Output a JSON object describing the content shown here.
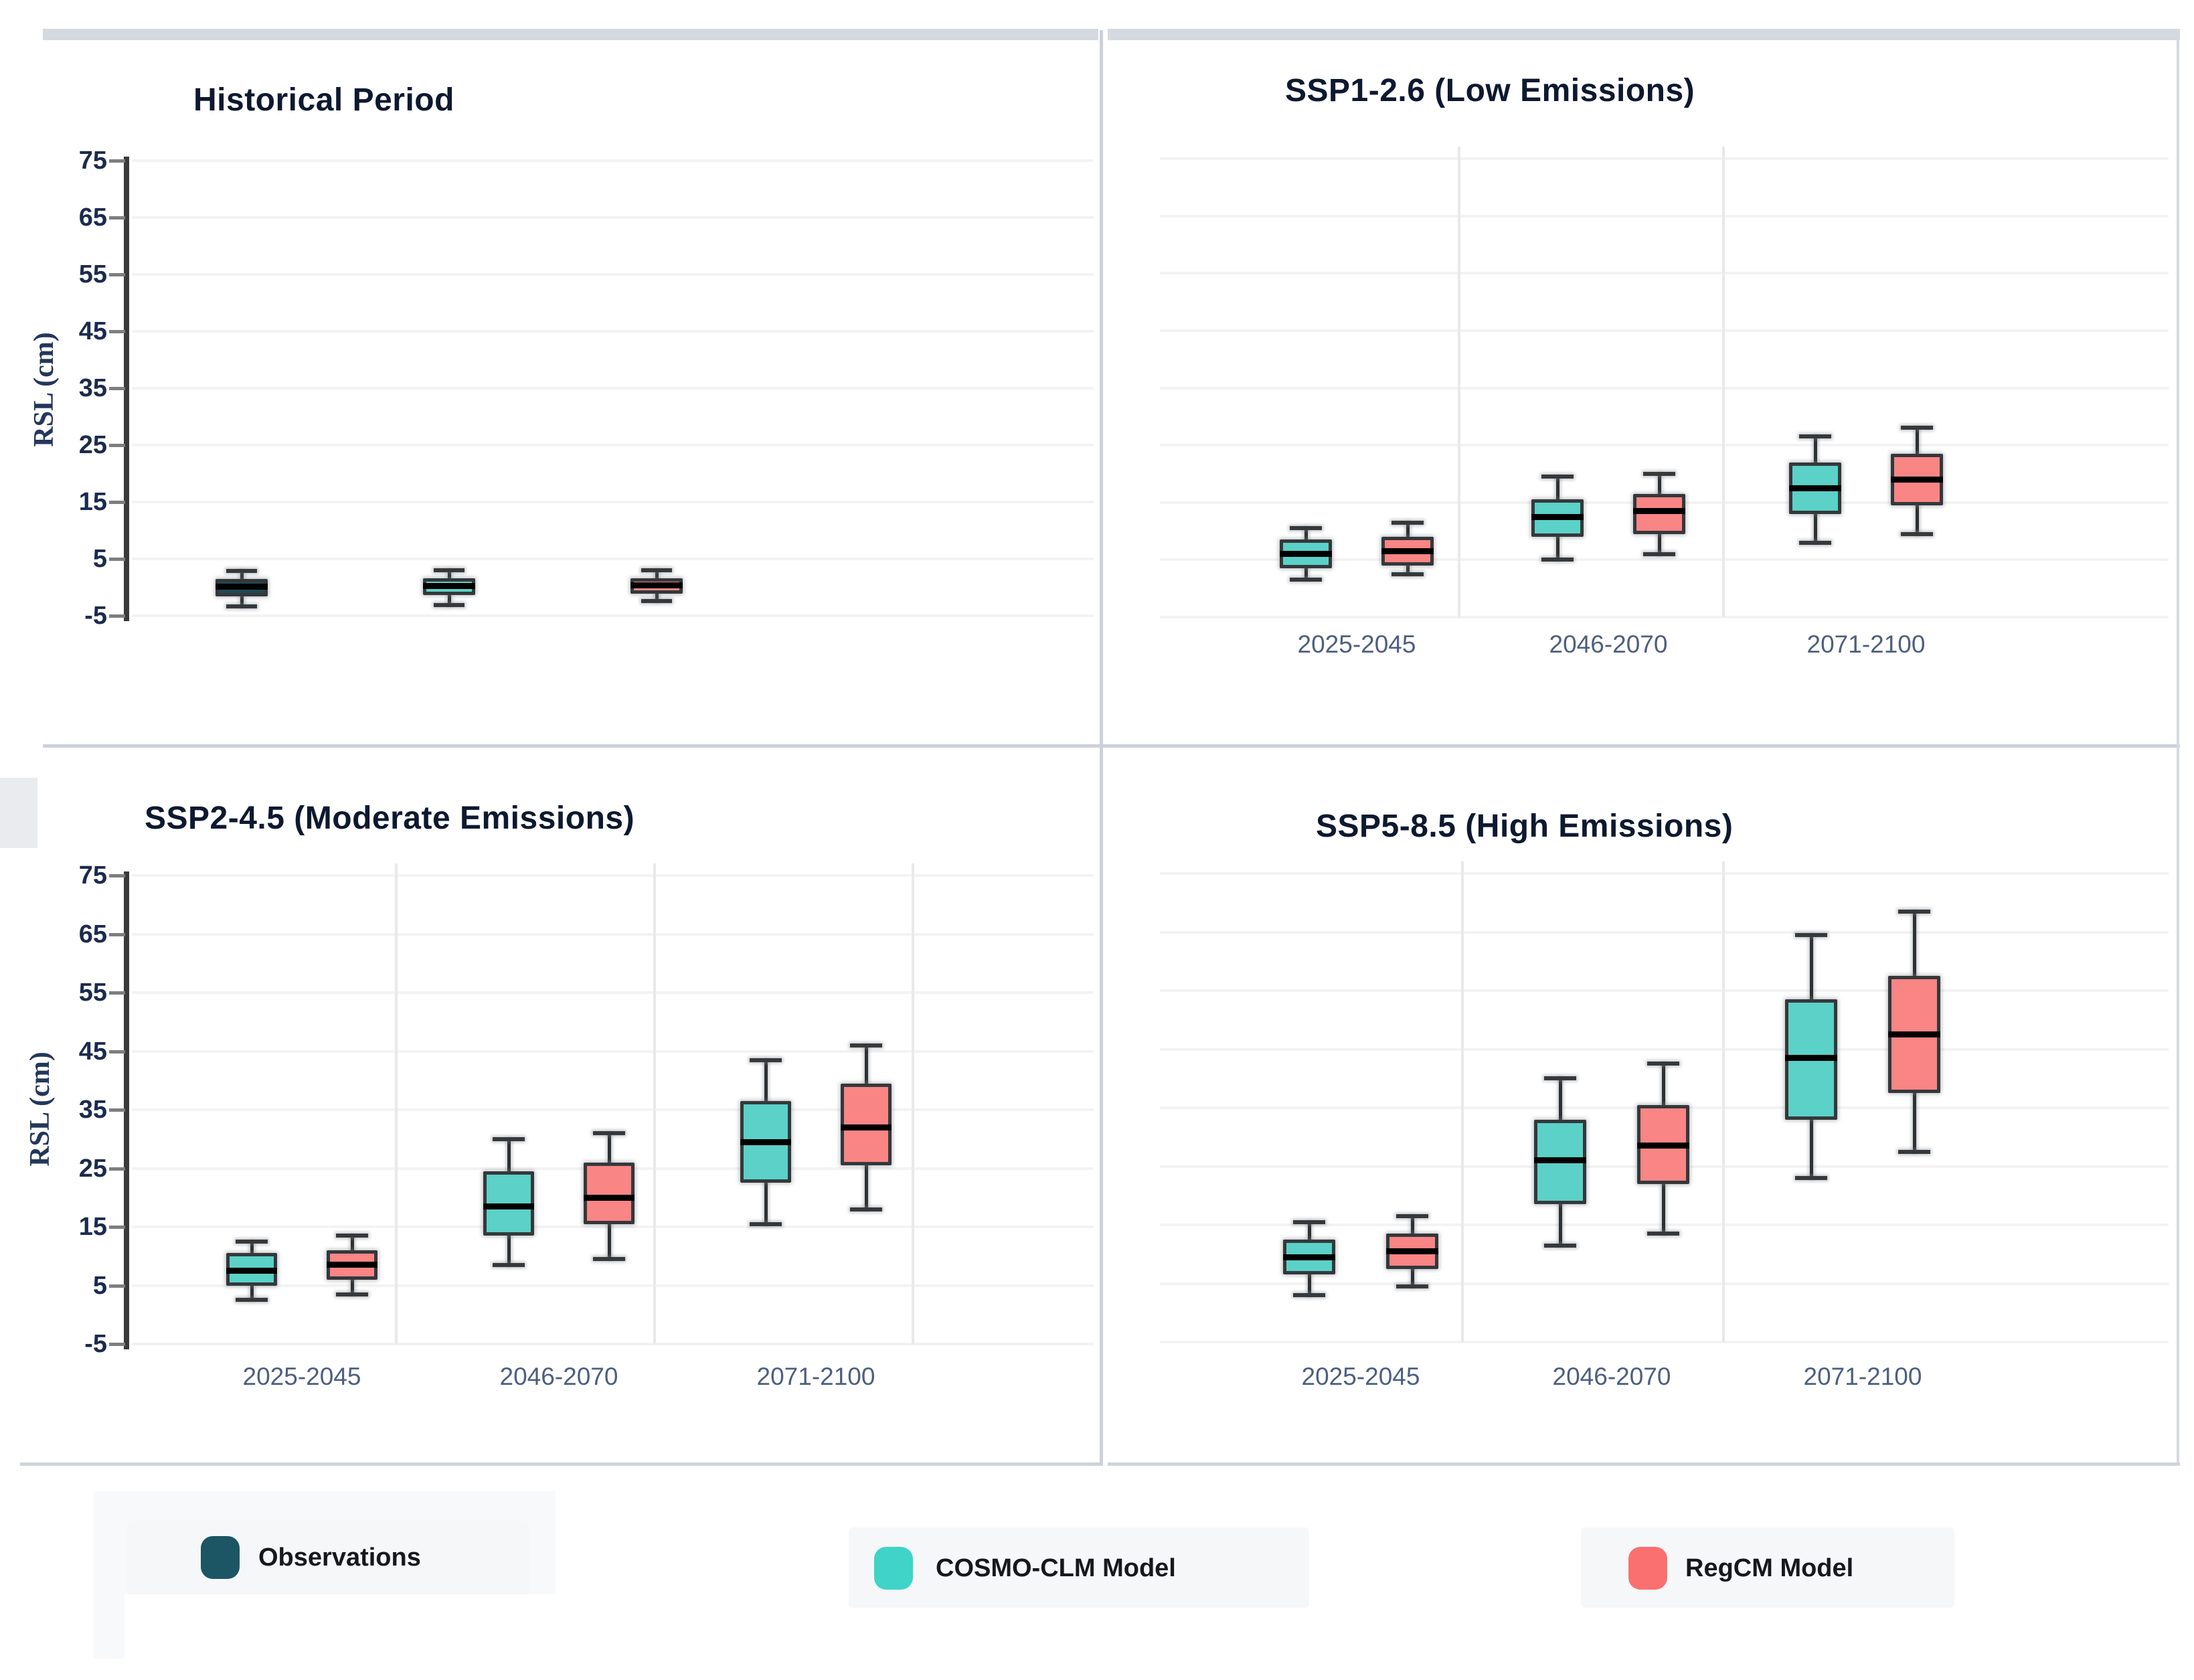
{
  "figure": {
    "ylabel": "RSL (cm)",
    "yticks": [
      "75",
      "65",
      "55",
      "45",
      "35",
      "25",
      "15",
      "5",
      "-5"
    ],
    "legend": [
      {
        "label": "Observations",
        "swatch": "#1C5563"
      },
      {
        "label": "COSMO-CLM Model",
        "swatch": "#3FD4C7"
      },
      {
        "label": "RegCM Model",
        "swatch": "#FA7070"
      }
    ]
  },
  "colors": {
    "teal_box": "#5BD1C8",
    "red_box": "#F98585",
    "obs_box": "#1F4A55",
    "box_border": "#34383b",
    "median": "#000000",
    "grid": "#f3f3f3",
    "divider": "#e9e9e9",
    "axis": "#3a3a3a",
    "tick_label": "#1b2b4d",
    "x_label": "#4d5f80",
    "title": "#0d1930",
    "panel_frame": "#ccd1d9",
    "chip_bg": "#f5f7f9"
  },
  "chart_data": [
    {
      "id": "historical",
      "type": "box",
      "title": "Historical Period",
      "ylabel": "RSL (cm)",
      "ylim": [
        -5,
        75
      ],
      "categories": [
        ""
      ],
      "series": [
        {
          "name": "Observations",
          "color": "#1F4A55",
          "boxes": [
            {
              "low": -3.4,
              "q1": -1.6,
              "median": 0.1,
              "q3": 1.5,
              "high": 2.9
            }
          ]
        },
        {
          "name": "COSMO-CLM Model",
          "color": "#5BD1C8",
          "boxes": [
            {
              "low": -3.1,
              "q1": -1.4,
              "median": 0.2,
              "q3": 1.6,
              "high": 3.0
            }
          ]
        },
        {
          "name": "RegCM Model",
          "color": "#F98585",
          "boxes": [
            {
              "low": -2.4,
              "q1": -1.1,
              "median": 0.4,
              "q3": 1.6,
              "high": 3.0
            }
          ]
        }
      ]
    },
    {
      "id": "ssp126",
      "type": "box",
      "title": "SSP1-2.6 (Low Emissions)",
      "ylim": [
        -5,
        75
      ],
      "categories": [
        "2025-2045",
        "2046-2070",
        "2071-2100"
      ],
      "series": [
        {
          "name": "COSMO-CLM Model",
          "color": "#5BD1C8",
          "boxes": [
            {
              "low": 1.5,
              "q1": 3.5,
              "median": 6.0,
              "q3": 8.5,
              "high": 10.5
            },
            {
              "low": 5.0,
              "q1": 9.0,
              "median": 12.5,
              "q3": 15.5,
              "high": 19.5
            },
            {
              "low": 8.0,
              "q1": 13.0,
              "median": 17.5,
              "q3": 22.0,
              "high": 26.5
            }
          ]
        },
        {
          "name": "RegCM Model",
          "color": "#F98585",
          "boxes": [
            {
              "low": 2.5,
              "q1": 4.0,
              "median": 6.5,
              "q3": 9.0,
              "high": 11.5
            },
            {
              "low": 6.0,
              "q1": 9.5,
              "median": 13.5,
              "q3": 16.5,
              "high": 20.0
            },
            {
              "low": 9.5,
              "q1": 14.5,
              "median": 19.0,
              "q3": 23.5,
              "high": 28.0
            }
          ]
        }
      ]
    },
    {
      "id": "ssp245",
      "type": "box",
      "title": "SSP2-4.5 (Moderate Emissions)",
      "ylabel": "RSL (cm)",
      "ylim": [
        -5,
        75
      ],
      "categories": [
        "2025-2045",
        "2046-2070",
        "2071-2100"
      ],
      "series": [
        {
          "name": "COSMO-CLM Model",
          "color": "#5BD1C8",
          "boxes": [
            {
              "low": 2.5,
              "q1": 5.0,
              "median": 7.5,
              "q3": 10.5,
              "high": 12.5
            },
            {
              "low": 8.5,
              "q1": 13.5,
              "median": 18.5,
              "q3": 24.5,
              "high": 30.0
            },
            {
              "low": 15.5,
              "q1": 22.5,
              "median": 29.5,
              "q3": 36.5,
              "high": 43.5
            }
          ]
        },
        {
          "name": "RegCM Model",
          "color": "#F98585",
          "boxes": [
            {
              "low": 3.5,
              "q1": 6.0,
              "median": 8.5,
              "q3": 11.0,
              "high": 13.5
            },
            {
              "low": 9.5,
              "q1": 15.5,
              "median": 20.0,
              "q3": 26.0,
              "high": 31.0
            },
            {
              "low": 18.0,
              "q1": 25.5,
              "median": 32.0,
              "q3": 39.5,
              "high": 46.0
            }
          ]
        }
      ]
    },
    {
      "id": "ssp585",
      "type": "box",
      "title": "SSP5-8.5 (High Emissions)",
      "ylim": [
        -5,
        75
      ],
      "categories": [
        "2025-2045",
        "2046-2070",
        "2071-2100"
      ],
      "series": [
        {
          "name": "COSMO-CLM Model",
          "color": "#5BD1C8",
          "boxes": [
            {
              "low": 3.0,
              "q1": 6.5,
              "median": 9.5,
              "q3": 12.5,
              "high": 15.5
            },
            {
              "low": 11.5,
              "q1": 18.5,
              "median": 26.0,
              "q3": 33.0,
              "high": 40.0
            },
            {
              "low": 23.0,
              "q1": 33.0,
              "median": 43.5,
              "q3": 53.5,
              "high": 64.5
            }
          ]
        },
        {
          "name": "RegCM Model",
          "color": "#F98585",
          "boxes": [
            {
              "low": 4.5,
              "q1": 7.5,
              "median": 10.5,
              "q3": 13.5,
              "high": 16.5
            },
            {
              "low": 13.5,
              "q1": 22.0,
              "median": 28.5,
              "q3": 35.5,
              "high": 42.5
            },
            {
              "low": 27.5,
              "q1": 37.5,
              "median": 47.5,
              "q3": 57.5,
              "high": 68.5
            }
          ]
        }
      ]
    }
  ]
}
